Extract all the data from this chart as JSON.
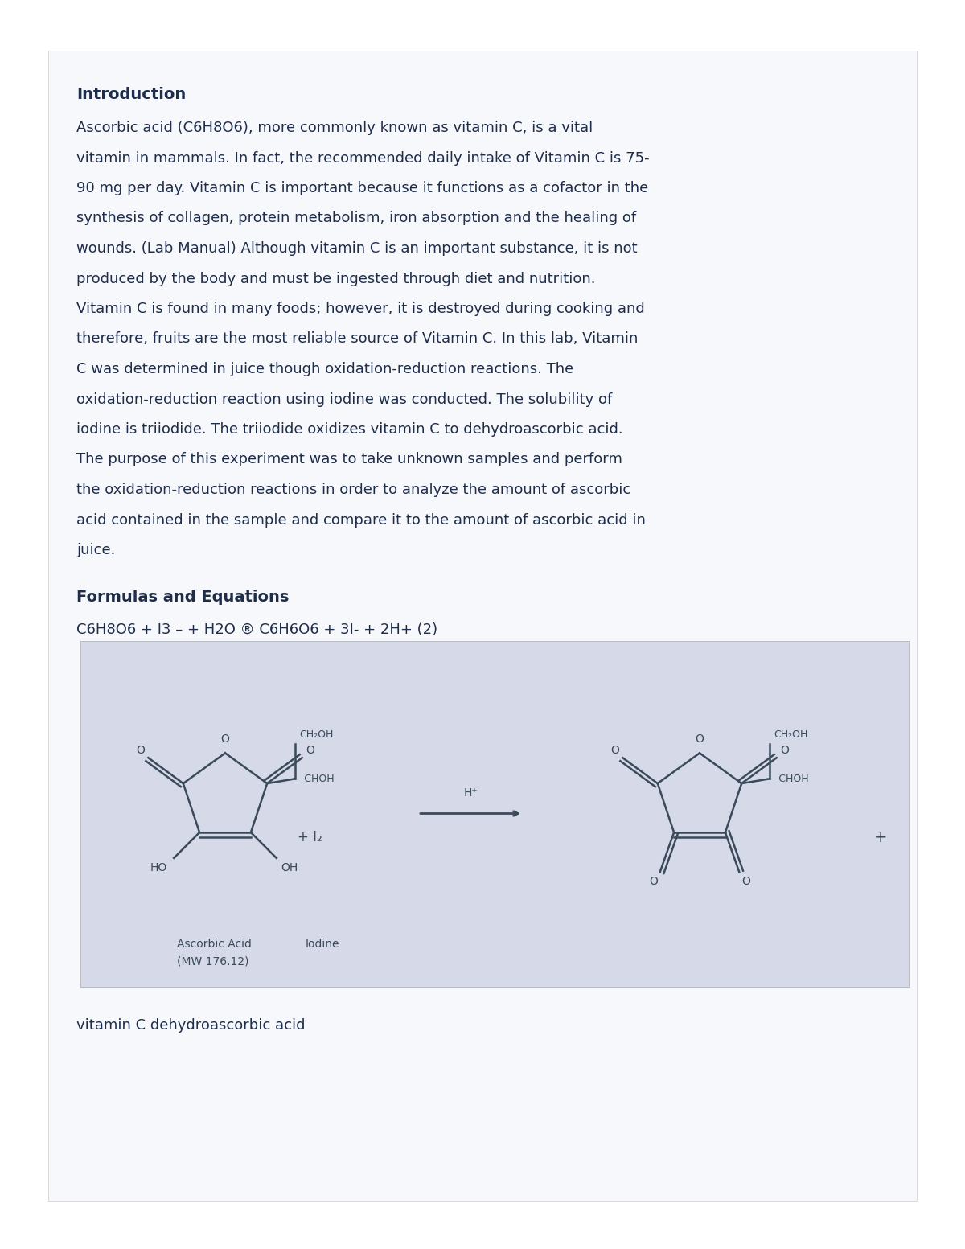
{
  "bg_color": "#ffffff",
  "card_bg": "#f7f8fc",
  "text_color": "#1e2d4a",
  "img_box_color": "#d9dce8",
  "title": "Introduction",
  "lines": [
    "Ascorbic acid (C6H8O6), more commonly known as vitamin C, is a vital",
    "vitamin in mammals. In fact, the recommended daily intake of Vitamin C is 75-",
    "90 mg per day. Vitamin C is important because it functions as a cofactor in the",
    "synthesis of collagen, protein metabolism, iron absorption and the healing of",
    "wounds. (Lab Manual) Although vitamin C is an important substance, it is not",
    "produced by the body and must be ingested through diet and nutrition.",
    "Vitamin C is found in many foods; however, it is destroyed during cooking and",
    "therefore, fruits are the most reliable source of Vitamin C. In this lab, Vitamin",
    "C was determined in juice though oxidation-reduction reactions. The",
    "oxidation-reduction reaction using iodine was conducted. The solubility of",
    "iodine is triiodide. The triiodide oxidizes vitamin C to dehydroascorbic acid.",
    "The purpose of this experiment was to take unknown samples and perform",
    "the oxidation-reduction reactions in order to analyze the amount of ascorbic",
    "acid contained in the sample and compare it to the amount of ascorbic acid in",
    "juice."
  ],
  "section2_title": "Formulas and Equations",
  "equation": "C6H8O6 + I3 – + H2O ® C6H6O6 + 3I- + 2H+ (2)",
  "caption_left1": "Ascorbic Acid",
  "caption_left2": "(MW 176.12)",
  "caption_iodine": "Iodine",
  "bottom_text": "vitamin C dehydroascorbic acid",
  "title_fontsize": 14,
  "body_fontsize": 13,
  "eq_fontsize": 13,
  "mol_label_fs": 9,
  "caption_fs": 10
}
